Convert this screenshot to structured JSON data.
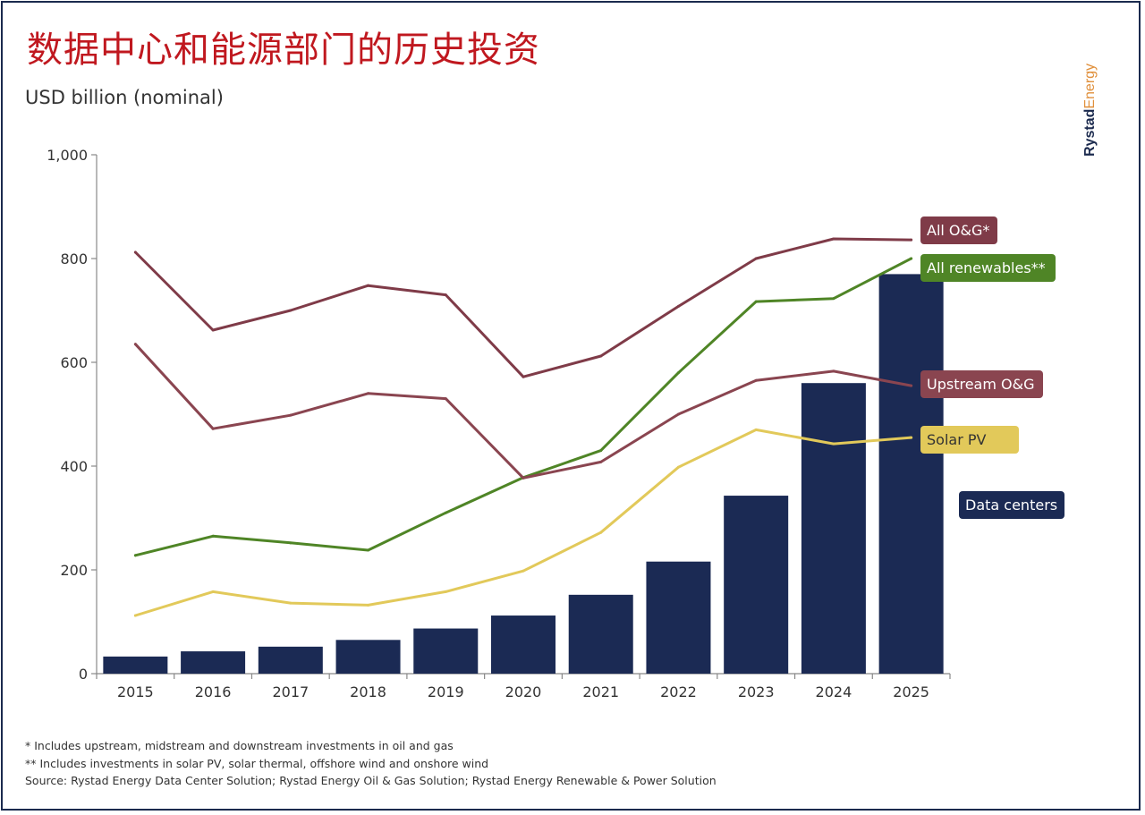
{
  "title": "数据中心和能源部门的历史投资",
  "subtitle": "USD billion (nominal)",
  "brand": {
    "part1": "Rystad",
    "part2": "Energy"
  },
  "footnotes": [
    "* Includes upstream, midstream and downstream investments in oil and gas",
    "** Includes investments in solar PV, solar thermal, offshore wind and onshore wind",
    "Source: Rystad Energy Data Center Solution; Rystad Energy Oil & Gas Solution; Rystad Energy Renewable & Power Solution"
  ],
  "colors": {
    "data_centers": "#1b2a54",
    "all_og": "#7f3b48",
    "upstream_og": "#8a4550",
    "renewables": "#4f8526",
    "solar": "#e2c95a",
    "axis": "#888888",
    "text": "#333333"
  },
  "chart_data": {
    "type": "bar+line",
    "categories": [
      "2015",
      "2016",
      "2017",
      "2018",
      "2019",
      "2020",
      "2021",
      "2022",
      "2023",
      "2024",
      "2025"
    ],
    "ylim": [
      0,
      1000
    ],
    "yticks": [
      0,
      200,
      400,
      600,
      800,
      1000
    ],
    "ytick_labels": [
      "0",
      "200",
      "400",
      "600",
      "800",
      "1,000"
    ],
    "bars": {
      "name": "Data centers",
      "values": [
        33,
        43,
        52,
        65,
        87,
        112,
        152,
        216,
        343,
        560,
        770
      ]
    },
    "series": [
      {
        "name": "All O&G*",
        "key": "all_og",
        "values": [
          812,
          662,
          700,
          748,
          730,
          572,
          612,
          708,
          800,
          838,
          836
        ]
      },
      {
        "name": "All renewables**",
        "key": "renewables",
        "values": [
          228,
          265,
          252,
          238,
          310,
          378,
          430,
          580,
          717,
          723,
          800
        ]
      },
      {
        "name": "Upstream O&G",
        "key": "upstream_og",
        "values": [
          635,
          472,
          498,
          540,
          530,
          377,
          408,
          500,
          565,
          583,
          555
        ]
      },
      {
        "name": "Solar PV",
        "key": "solar",
        "values": [
          112,
          158,
          136,
          132,
          158,
          198,
          272,
          398,
          470,
          443,
          455
        ]
      }
    ],
    "legend_labels": {
      "all_og": "All O&G*",
      "renewables": "All renewables**",
      "upstream_og": "Upstream O&G",
      "solar": "Solar PV",
      "data_centers": "Data centers"
    }
  }
}
